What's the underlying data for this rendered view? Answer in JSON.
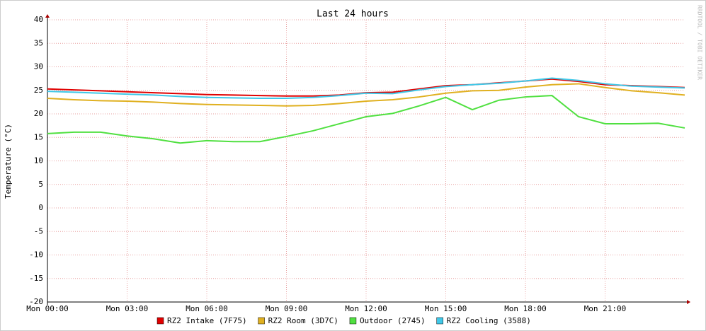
{
  "chart_data": {
    "type": "line",
    "title": "Last 24 hours",
    "y_label": "Temperature (°C)",
    "watermark": "RRDTOOL / TOBI OETIKER",
    "x": [
      0,
      1,
      2,
      3,
      4,
      5,
      6,
      7,
      8,
      9,
      10,
      11,
      12,
      13,
      14,
      15,
      16,
      17,
      18,
      19,
      20,
      21,
      22,
      23,
      24
    ],
    "xlim": [
      0,
      24
    ],
    "xticks": [
      {
        "value": 0,
        "label": "Mon 00:00"
      },
      {
        "value": 3,
        "label": "Mon 03:00"
      },
      {
        "value": 6,
        "label": "Mon 06:00"
      },
      {
        "value": 9,
        "label": "Mon 09:00"
      },
      {
        "value": 12,
        "label": "Mon 12:00"
      },
      {
        "value": 15,
        "label": "Mon 15:00"
      },
      {
        "value": 18,
        "label": "Mon 18:00"
      },
      {
        "value": 21,
        "label": "Mon 21:00"
      }
    ],
    "ylim": [
      -20,
      40
    ],
    "yticks": [
      -20,
      -15,
      -10,
      -5,
      0,
      5,
      10,
      15,
      20,
      25,
      30,
      35,
      40
    ],
    "grid": true,
    "legend": "bottom",
    "series": [
      {
        "name": "RZ2 Intake (7F75)",
        "color": "#e00000",
        "values": [
          25.3,
          25.1,
          24.9,
          24.7,
          24.5,
          24.3,
          24.1,
          24.0,
          23.9,
          23.8,
          23.8,
          24.0,
          24.5,
          24.6,
          25.3,
          26.0,
          26.2,
          26.6,
          27.0,
          27.4,
          26.9,
          26.2,
          26.0,
          25.8,
          25.6
        ]
      },
      {
        "name": "RZ2 Room (3D7C)",
        "color": "#e0b020",
        "values": [
          23.3,
          23.0,
          22.8,
          22.7,
          22.5,
          22.2,
          22.0,
          21.9,
          21.8,
          21.7,
          21.8,
          22.2,
          22.7,
          23.0,
          23.6,
          24.4,
          24.9,
          25.0,
          25.7,
          26.2,
          26.4,
          25.6,
          24.9,
          24.5,
          24.0
        ]
      },
      {
        "name": "Outdoor (2745)",
        "color": "#50e040",
        "values": [
          15.8,
          16.1,
          16.1,
          15.3,
          14.7,
          13.8,
          14.3,
          14.1,
          14.1,
          15.2,
          16.4,
          17.9,
          19.4,
          20.1,
          21.7,
          23.5,
          20.9,
          22.9,
          23.6,
          23.9,
          19.4,
          17.9,
          17.9,
          18.0,
          17.0
        ]
      },
      {
        "name": "RZ2 Cooling (3588)",
        "color": "#40c8e8",
        "values": [
          24.8,
          24.6,
          24.4,
          24.2,
          24.0,
          23.7,
          23.5,
          23.4,
          23.3,
          23.3,
          23.5,
          23.9,
          24.4,
          24.3,
          25.1,
          25.8,
          26.2,
          26.5,
          27.0,
          27.6,
          27.1,
          26.4,
          25.9,
          25.7,
          25.5
        ]
      }
    ]
  }
}
